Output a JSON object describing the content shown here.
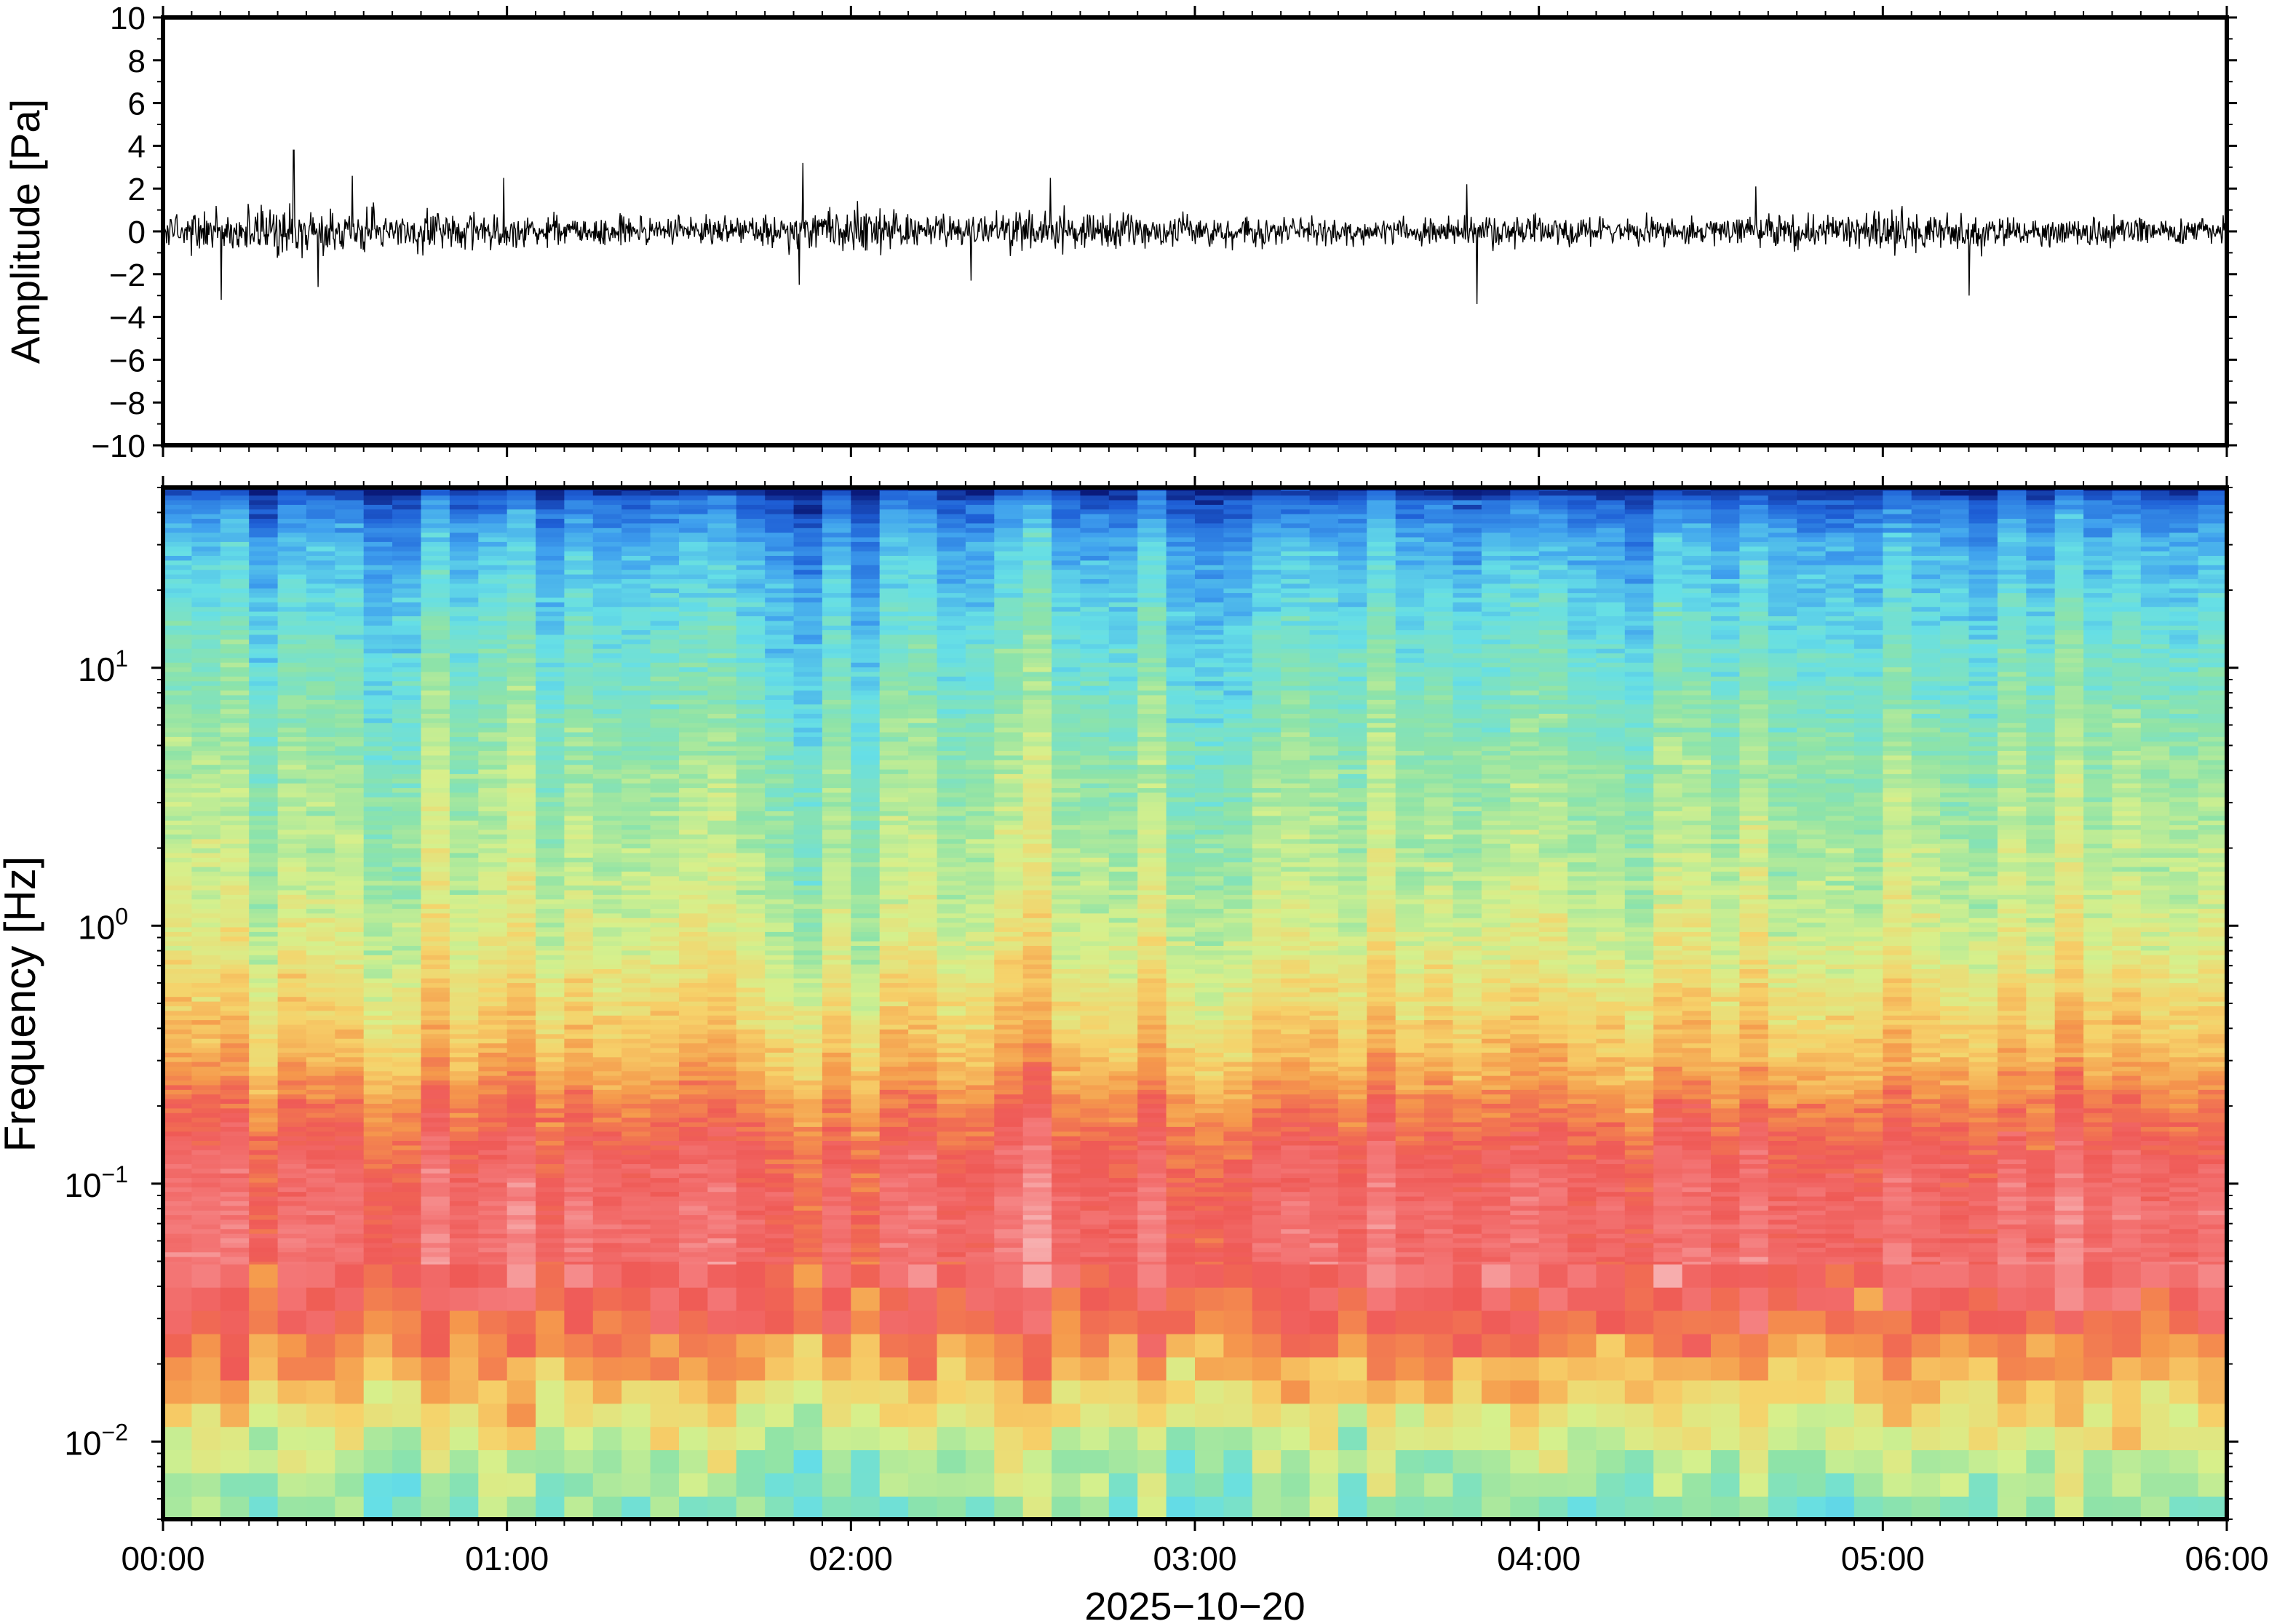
{
  "chart_data": [
    {
      "type": "line",
      "panel": "waveform",
      "ylabel": "Amplitude [Pa]",
      "ylim": [
        -10,
        10
      ],
      "ytick_labels": [
        "10",
        "8",
        "6",
        "4",
        "2",
        "0",
        "−2",
        "−4",
        "−6",
        "−8",
        "−10"
      ],
      "yticks": [
        10,
        8,
        6,
        4,
        2,
        0,
        -2,
        -4,
        -6,
        -8,
        -10
      ],
      "xlim_hours": [
        0,
        6
      ],
      "grid": false,
      "line_color": "#000000",
      "envelope": {
        "x_hours": [
          0.0,
          0.25,
          0.5,
          0.75,
          1.0,
          1.25,
          1.5,
          1.75,
          2.0,
          2.25,
          2.5,
          2.75,
          3.0,
          3.25,
          3.5,
          3.75,
          4.0,
          4.25,
          4.5,
          4.75,
          5.0,
          5.25,
          5.5,
          5.75,
          6.0
        ],
        "typical_amplitude": [
          1.0,
          1.5,
          1.4,
          1.1,
          1.0,
          0.9,
          0.8,
          0.9,
          1.3,
          1.0,
          1.1,
          1.2,
          0.9,
          0.9,
          0.7,
          0.8,
          1.0,
          0.8,
          0.8,
          1.0,
          1.2,
          1.0,
          0.9,
          0.8,
          0.8
        ]
      },
      "peaks": [
        {
          "x_hours": 0.17,
          "y": -3.2
        },
        {
          "x_hours": 0.38,
          "y": 3.8
        },
        {
          "x_hours": 0.45,
          "y": -2.6
        },
        {
          "x_hours": 0.55,
          "y": 2.6
        },
        {
          "x_hours": 0.99,
          "y": 2.5
        },
        {
          "x_hours": 1.86,
          "y": 3.2
        },
        {
          "x_hours": 1.85,
          "y": -2.5
        },
        {
          "x_hours": 2.35,
          "y": -2.3
        },
        {
          "x_hours": 2.58,
          "y": 2.5
        },
        {
          "x_hours": 3.82,
          "y": -3.4
        },
        {
          "x_hours": 3.79,
          "y": 2.2
        },
        {
          "x_hours": 5.25,
          "y": -3.0
        },
        {
          "x_hours": 4.63,
          "y": 2.1
        }
      ]
    },
    {
      "type": "heatmap",
      "panel": "spectrogram",
      "ylabel": "Frequency [Hz]",
      "yscale": "log",
      "ylim_hz": [
        0.005,
        50
      ],
      "ytick_labels": [
        {
          "base": "10",
          "exp": "1",
          "value": 10
        },
        {
          "base": "10",
          "exp": "0",
          "value": 1
        },
        {
          "base": "10",
          "exp": "−1",
          "value": 0.1
        },
        {
          "base": "10",
          "exp": "−2",
          "value": 0.01
        }
      ],
      "xlabel": "2025−10−20",
      "xlim_hours": [
        0,
        6
      ],
      "xtick_labels": [
        "00:00",
        "01:00",
        "02:00",
        "03:00",
        "04:00",
        "05:00",
        "06:00"
      ],
      "xticks_hours": [
        0,
        1,
        2,
        3,
        4,
        5,
        6
      ],
      "colormap": [
        "#0a1a7a",
        "#1e5fd6",
        "#3fa0ee",
        "#66dfe6",
        "#8ee3a8",
        "#d6f08c",
        "#f6d26a",
        "#f59a4c",
        "#ef5a56",
        "#f47a7a",
        "#f8b7b7"
      ],
      "level_profile": {
        "log10_freq": [
          -2.3,
          -2.1,
          -1.9,
          -1.7,
          -1.5,
          -1.3,
          -1.1,
          -0.9,
          -0.7,
          -0.5,
          -0.3,
          -0.1,
          0.1,
          0.3,
          0.5,
          0.7,
          0.9,
          1.1,
          1.3,
          1.5,
          1.65,
          1.7
        ],
        "level": [
          0.38,
          0.45,
          0.55,
          0.68,
          0.8,
          0.86,
          0.86,
          0.82,
          0.74,
          0.64,
          0.58,
          0.52,
          0.48,
          0.45,
          0.43,
          0.4,
          0.36,
          0.33,
          0.28,
          0.22,
          0.12,
          0.0
        ]
      }
    }
  ]
}
